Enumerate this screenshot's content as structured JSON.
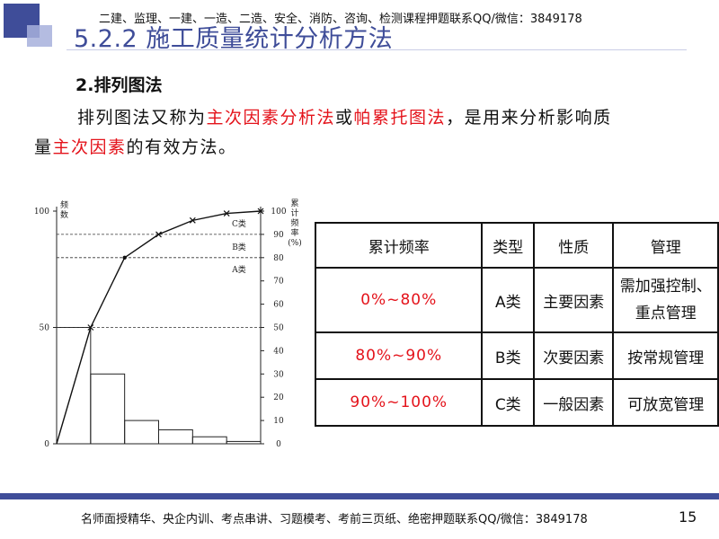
{
  "header": {
    "slide_title": "5.2.2 施工质量统计分析方法",
    "banner": "二建、监理、一建、一造、二造、安全、消防、咨询、检测课程押题联系QQ/微信：3849178"
  },
  "section": {
    "heading": "2.排列图法",
    "intro_segments": [
      {
        "text": "排列图法又称为",
        "red": false
      },
      {
        "text": "主次因素分析法",
        "red": true
      },
      {
        "text": "或",
        "red": false
      },
      {
        "text": "帕累托图法",
        "red": true
      },
      {
        "text": "，是用来分析影响质",
        "red": false
      }
    ],
    "intro_line2_segments": [
      {
        "text": "量",
        "red": false
      },
      {
        "text": "主次因素",
        "red": true
      },
      {
        "text": "的有效方法。",
        "red": false
      }
    ]
  },
  "chart_data": {
    "type": "bar",
    "left_axis_label": "频数",
    "right_axis_label": "累计频率(%)",
    "left_ticks": [
      "0",
      "50",
      "100"
    ],
    "right_ticks": [
      "0",
      "10",
      "20",
      "30",
      "40",
      "50",
      "60",
      "70",
      "80",
      "90",
      "100"
    ],
    "bars_percent": [
      50,
      30,
      10,
      6,
      3,
      1
    ],
    "cumulative_percent": [
      0,
      50,
      80,
      90,
      96,
      99,
      100
    ],
    "zone_labels": [
      "A类",
      "B类",
      "C类"
    ],
    "threshold_lines_percent": [
      50,
      80,
      90
    ],
    "ylim": [
      0,
      100
    ]
  },
  "table": {
    "headers": [
      "累计频率",
      "类型",
      "性质",
      "管理"
    ],
    "rows": [
      {
        "freq": "0%~80%",
        "type": "A类",
        "nature": "主要因素",
        "mgmt_line1": "需加强控制、",
        "mgmt_line2": "重点管理"
      },
      {
        "freq": "80%~90%",
        "type": "B类",
        "nature": "次要因素",
        "mgmt_line1": "按常规管理",
        "mgmt_line2": ""
      },
      {
        "freq": "90%~100%",
        "type": "C类",
        "nature": "一般因素",
        "mgmt_line1": "可放宽管理",
        "mgmt_line2": ""
      }
    ]
  },
  "footer": {
    "text": "名师面授精华、央企内训、考点串讲、习题模考、考前三页纸、绝密押题联系QQ/微信：3849178",
    "page_number": "15"
  },
  "colors": {
    "accent": "#3f4d99",
    "highlight": "#e4131b"
  }
}
